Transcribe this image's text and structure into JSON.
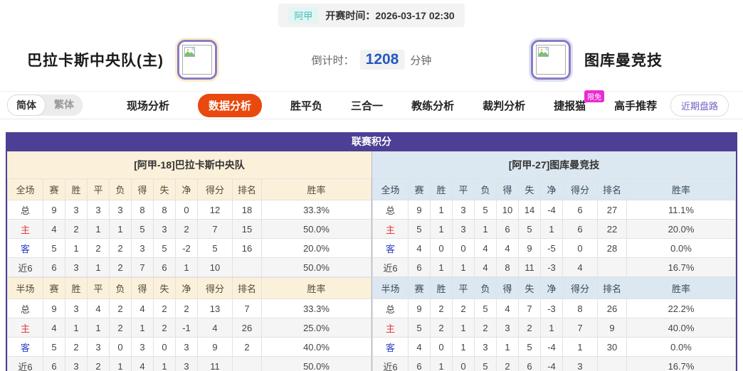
{
  "header": {
    "league_badge": "阿甲",
    "kickoff_text": "开赛时间：2026-03-17 02:30",
    "home_team": "巴拉卡斯中央队(主)",
    "away_team": "图库曼竞技",
    "countdown_label": "倒计时：",
    "countdown_value": "1208",
    "countdown_unit": "分钟"
  },
  "nav": {
    "lang_simplified": "简体",
    "lang_traditional": "繁体",
    "tabs": [
      {
        "label": "现场分析",
        "active": false,
        "badge": ""
      },
      {
        "label": "数据分析",
        "active": true,
        "badge": ""
      },
      {
        "label": "胜平负",
        "active": false,
        "badge": ""
      },
      {
        "label": "三合一",
        "active": false,
        "badge": ""
      },
      {
        "label": "教练分析",
        "active": false,
        "badge": ""
      },
      {
        "label": "裁判分析",
        "active": false,
        "badge": ""
      },
      {
        "label": "捷报猫",
        "active": false,
        "badge": "限免"
      },
      {
        "label": "高手推荐",
        "active": false,
        "badge": ""
      }
    ],
    "trend_button": "近期盘路"
  },
  "league_table": {
    "title": "联赛积分",
    "home": {
      "subtitle": "[阿甲-18]巴拉卡斯中央队",
      "full": {
        "header": [
          "全场",
          "赛",
          "胜",
          "平",
          "负",
          "得",
          "失",
          "净",
          "得分",
          "排名",
          "胜率"
        ],
        "rows": [
          [
            "总",
            "9",
            "3",
            "3",
            "3",
            "8",
            "8",
            "0",
            "12",
            "18",
            "33.3%"
          ],
          [
            "主",
            "4",
            "2",
            "1",
            "1",
            "5",
            "3",
            "2",
            "7",
            "15",
            "50.0%"
          ],
          [
            "客",
            "5",
            "1",
            "2",
            "2",
            "3",
            "5",
            "-2",
            "5",
            "16",
            "20.0%"
          ],
          [
            "近6",
            "6",
            "3",
            "1",
            "2",
            "7",
            "6",
            "1",
            "10",
            "",
            "50.0%"
          ]
        ]
      },
      "half": {
        "header": [
          "半场",
          "赛",
          "胜",
          "平",
          "负",
          "得",
          "失",
          "净",
          "得分",
          "排名",
          "胜率"
        ],
        "rows": [
          [
            "总",
            "9",
            "3",
            "4",
            "2",
            "4",
            "2",
            "2",
            "13",
            "7",
            "33.3%"
          ],
          [
            "主",
            "4",
            "1",
            "1",
            "2",
            "1",
            "2",
            "-1",
            "4",
            "26",
            "25.0%"
          ],
          [
            "客",
            "5",
            "2",
            "3",
            "0",
            "3",
            "0",
            "3",
            "9",
            "2",
            "40.0%"
          ],
          [
            "近6",
            "6",
            "3",
            "2",
            "1",
            "4",
            "1",
            "3",
            "11",
            "",
            "50.0%"
          ]
        ]
      }
    },
    "away": {
      "subtitle": "[阿甲-27]图库曼竞技",
      "full": {
        "header": [
          "全场",
          "赛",
          "胜",
          "平",
          "负",
          "得",
          "失",
          "净",
          "得分",
          "排名",
          "胜率"
        ],
        "rows": [
          [
            "总",
            "9",
            "1",
            "3",
            "5",
            "10",
            "14",
            "-4",
            "6",
            "27",
            "11.1%"
          ],
          [
            "主",
            "5",
            "1",
            "3",
            "1",
            "6",
            "5",
            "1",
            "6",
            "22",
            "20.0%"
          ],
          [
            "客",
            "4",
            "0",
            "0",
            "4",
            "4",
            "9",
            "-5",
            "0",
            "28",
            "0.0%"
          ],
          [
            "近6",
            "6",
            "1",
            "1",
            "4",
            "8",
            "11",
            "-3",
            "4",
            "",
            "16.7%"
          ]
        ]
      },
      "half": {
        "header": [
          "半场",
          "赛",
          "胜",
          "平",
          "负",
          "得",
          "失",
          "净",
          "得分",
          "排名",
          "胜率"
        ],
        "rows": [
          [
            "总",
            "9",
            "2",
            "2",
            "5",
            "4",
            "7",
            "-3",
            "8",
            "26",
            "22.2%"
          ],
          [
            "主",
            "5",
            "2",
            "1",
            "2",
            "3",
            "2",
            "1",
            "7",
            "9",
            "40.0%"
          ],
          [
            "客",
            "4",
            "0",
            "1",
            "3",
            "1",
            "5",
            "-4",
            "1",
            "30",
            "0.0%"
          ],
          [
            "近6",
            "6",
            "1",
            "0",
            "5",
            "2",
            "6",
            "-4",
            "3",
            "",
            "16.7%"
          ]
        ]
      }
    }
  },
  "colors": {
    "header_purple": "#4c3f95",
    "active_tab_orange": "#e8490f",
    "badge_magenta": "#ea2bd2",
    "league_badge_teal": "#3fbdb5",
    "countdown_blue": "#2557c0",
    "home_subheader_cream": "#fbf0d9",
    "away_subheader_blue": "#dbe7f1",
    "home_row_red": "#e23b3b",
    "away_row_blue": "#2c46c8"
  },
  "icons": {
    "broken_image": "broken-image-icon"
  }
}
